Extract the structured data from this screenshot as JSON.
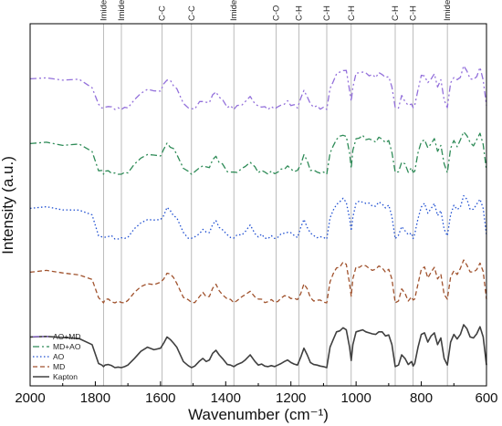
{
  "chart_data": {
    "type": "line",
    "xlabel": "Wavenumber (cm⁻¹)",
    "ylabel": "Intensity (a.u.)",
    "xlim": [
      2000,
      600
    ],
    "x_reversed": true,
    "x_ticks": [
      "2000",
      "1800",
      "1600",
      "1400",
      "1200",
      "1000",
      "800",
      "600"
    ],
    "grid": false,
    "legend_position": "bottom-left",
    "annotations": [
      {
        "label": "Imide Ⅰ",
        "x": 1775
      },
      {
        "label": "Imide Ⅱ",
        "x": 1720
      },
      {
        "label": "C-C",
        "x": 1595
      },
      {
        "label": "C-C",
        "x": 1505
      },
      {
        "label": "Imide Ⅲ",
        "x": 1375
      },
      {
        "label": "C-O",
        "x": 1245
      },
      {
        "label": "C-H",
        "x": 1175
      },
      {
        "label": "C-H",
        "x": 1090
      },
      {
        "label": "C-H",
        "x": 1015
      },
      {
        "label": "C-H",
        "x": 880
      },
      {
        "label": "C-H",
        "x": 825
      },
      {
        "label": "Imide Ⅳ",
        "x": 720
      }
    ],
    "series": [
      {
        "name": "AO+MD",
        "style": "dash-dot-dot",
        "color": "#9370DB",
        "offset": 4
      },
      {
        "name": "MD+AO",
        "style": "dash-dot",
        "color": "#2E8B57",
        "offset": 3
      },
      {
        "name": "AO",
        "style": "dot",
        "color": "#1F4FD1",
        "offset": 2
      },
      {
        "name": "MD",
        "style": "dash",
        "color": "#A0522D",
        "offset": 1
      },
      {
        "name": "Kapton",
        "style": "solid",
        "color": "#404040",
        "offset": 0
      }
    ],
    "profile": {
      "x": [
        2000,
        1950,
        1900,
        1850,
        1810,
        1790,
        1780,
        1775,
        1770,
        1760,
        1750,
        1740,
        1730,
        1720,
        1710,
        1700,
        1680,
        1660,
        1640,
        1620,
        1600,
        1590,
        1580,
        1570,
        1560,
        1550,
        1530,
        1515,
        1505,
        1495,
        1480,
        1470,
        1460,
        1450,
        1440,
        1430,
        1420,
        1410,
        1395,
        1385,
        1375,
        1365,
        1350,
        1340,
        1325,
        1310,
        1300,
        1290,
        1280,
        1270,
        1260,
        1250,
        1240,
        1230,
        1220,
        1210,
        1200,
        1190,
        1180,
        1170,
        1160,
        1150,
        1140,
        1130,
        1120,
        1110,
        1100,
        1090,
        1080,
        1070,
        1060,
        1050,
        1040,
        1030,
        1020,
        1015,
        1010,
        1000,
        990,
        980,
        970,
        960,
        950,
        940,
        930,
        920,
        910,
        900,
        890,
        880,
        870,
        860,
        850,
        840,
        830,
        825,
        820,
        810,
        800,
        790,
        780,
        770,
        760,
        750,
        740,
        730,
        720,
        710,
        700,
        690,
        680,
        670,
        660,
        650,
        640,
        630,
        620,
        610,
        600
      ],
      "y": [
        0.6,
        0.61,
        0.59,
        0.57,
        0.45,
        0.08,
        0.05,
        0.02,
        0.05,
        0.06,
        0.04,
        0.0,
        0.01,
        0.0,
        0.02,
        0.05,
        0.18,
        0.32,
        0.4,
        0.35,
        0.38,
        0.48,
        0.6,
        0.55,
        0.48,
        0.4,
        0.12,
        0.04,
        0.0,
        0.03,
        0.13,
        0.18,
        0.12,
        0.15,
        0.28,
        0.34,
        0.25,
        0.18,
        0.06,
        0.05,
        0.02,
        0.06,
        0.1,
        0.15,
        0.25,
        0.12,
        0.05,
        0.07,
        0.03,
        0.02,
        0.04,
        0.02,
        0.05,
        0.08,
        0.12,
        0.15,
        0.1,
        0.07,
        0.05,
        0.2,
        0.38,
        0.25,
        0.1,
        0.06,
        0.05,
        0.03,
        0.02,
        0.0,
        0.4,
        0.55,
        0.7,
        0.72,
        0.78,
        0.74,
        0.4,
        0.14,
        0.45,
        0.7,
        0.72,
        0.74,
        0.7,
        0.68,
        0.66,
        0.65,
        0.7,
        0.7,
        0.62,
        0.64,
        0.45,
        0.02,
        0.05,
        0.25,
        0.18,
        0.06,
        0.12,
        0.03,
        0.08,
        0.4,
        0.65,
        0.68,
        0.5,
        0.62,
        0.68,
        0.45,
        0.58,
        0.18,
        0.05,
        0.5,
        0.65,
        0.56,
        0.65,
        0.84,
        0.76,
        0.6,
        0.58,
        0.66,
        0.8,
        0.6,
        0.05
      ]
    }
  }
}
